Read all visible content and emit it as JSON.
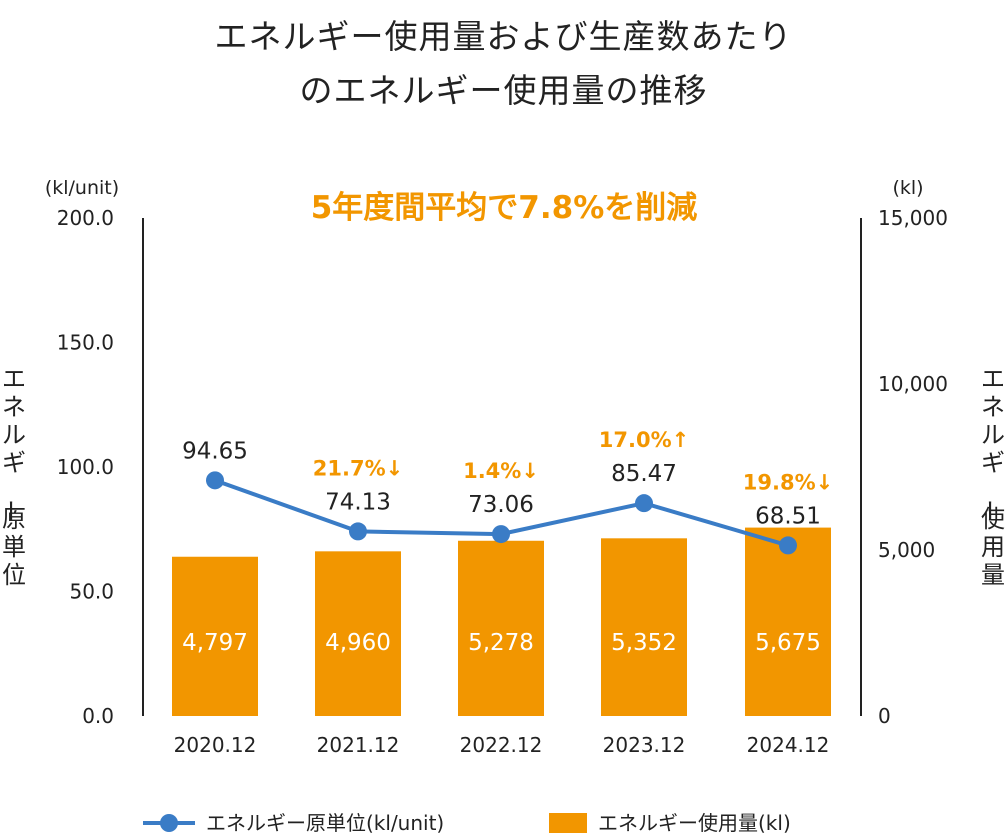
{
  "title_line1": "エネルギー使用量および生産数あたり",
  "title_line2": "のエネルギー使用量の推移",
  "chart_data": {
    "type": "bar",
    "headline": "5年度間平均で7.8%を削減",
    "categories": [
      "2020.12",
      "2021.12",
      "2022.12",
      "2023.12",
      "2024.12"
    ],
    "left_axis": {
      "unit": "(kl/unit)",
      "label": "エネルギー原単位",
      "range": [
        0,
        200
      ],
      "ticks": [
        "0.0",
        "50.0",
        "100.0",
        "150.0",
        "200.0"
      ]
    },
    "right_axis": {
      "unit": "(kl)",
      "label": "エネルギー使用量",
      "range": [
        0,
        15000
      ],
      "ticks": [
        "0",
        "5,000",
        "10,000",
        "15,000"
      ]
    },
    "series": [
      {
        "name": "エネルギー使用量(kl)",
        "type": "bar",
        "axis": "right",
        "color": "#f29600",
        "values": [
          4797,
          4960,
          5278,
          5352,
          5675
        ],
        "labels": [
          "4,797",
          "4,960",
          "5,278",
          "5,352",
          "5,675"
        ]
      },
      {
        "name": "エネルギー原単位(kl/unit)",
        "type": "line",
        "axis": "left",
        "color": "#3a7cc6",
        "values": [
          94.65,
          74.13,
          73.06,
          85.47,
          68.51
        ],
        "labels": [
          "94.65",
          "74.13",
          "73.06",
          "85.47",
          "68.51"
        ]
      }
    ],
    "changes": [
      "",
      "21.7%↓",
      "1.4%↓",
      "17.0%↑",
      "19.8%↓"
    ],
    "legend_placement": "bottom",
    "grid": false
  }
}
